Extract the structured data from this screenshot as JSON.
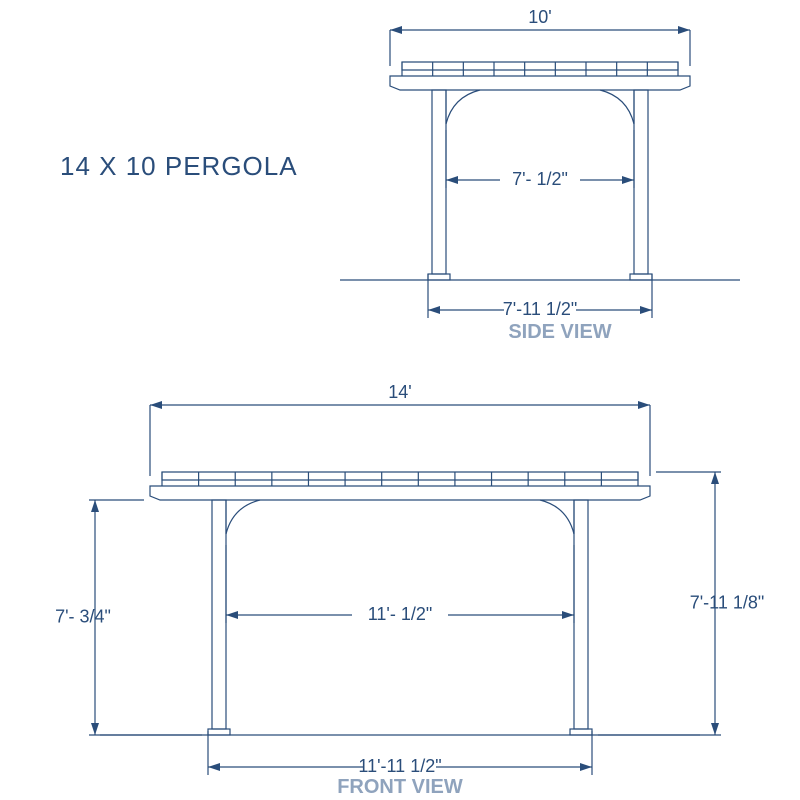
{
  "colors": {
    "stroke": "#2a4d7a",
    "label": "#8fa3bd",
    "background": "#ffffff"
  },
  "line_width": {
    "structure": 1.2,
    "dim": 1.2
  },
  "arrow": {
    "len": 12,
    "half_w": 4
  },
  "title": "14 X 10 PERGOLA",
  "side_view": {
    "label": "SIDE VIEW",
    "top_width": "10'",
    "inner_clear": "7'- 1/2\"",
    "post_out": "7'-11 1/2\""
  },
  "front_view": {
    "label": "FRONT VIEW",
    "top_width": "14'",
    "inner_clear": "11'- 1/2\"",
    "post_out": "11'-11 1/2\"",
    "clear_height": "7'- 3/4\"",
    "overall_height": "7'-11 1/8\""
  }
}
